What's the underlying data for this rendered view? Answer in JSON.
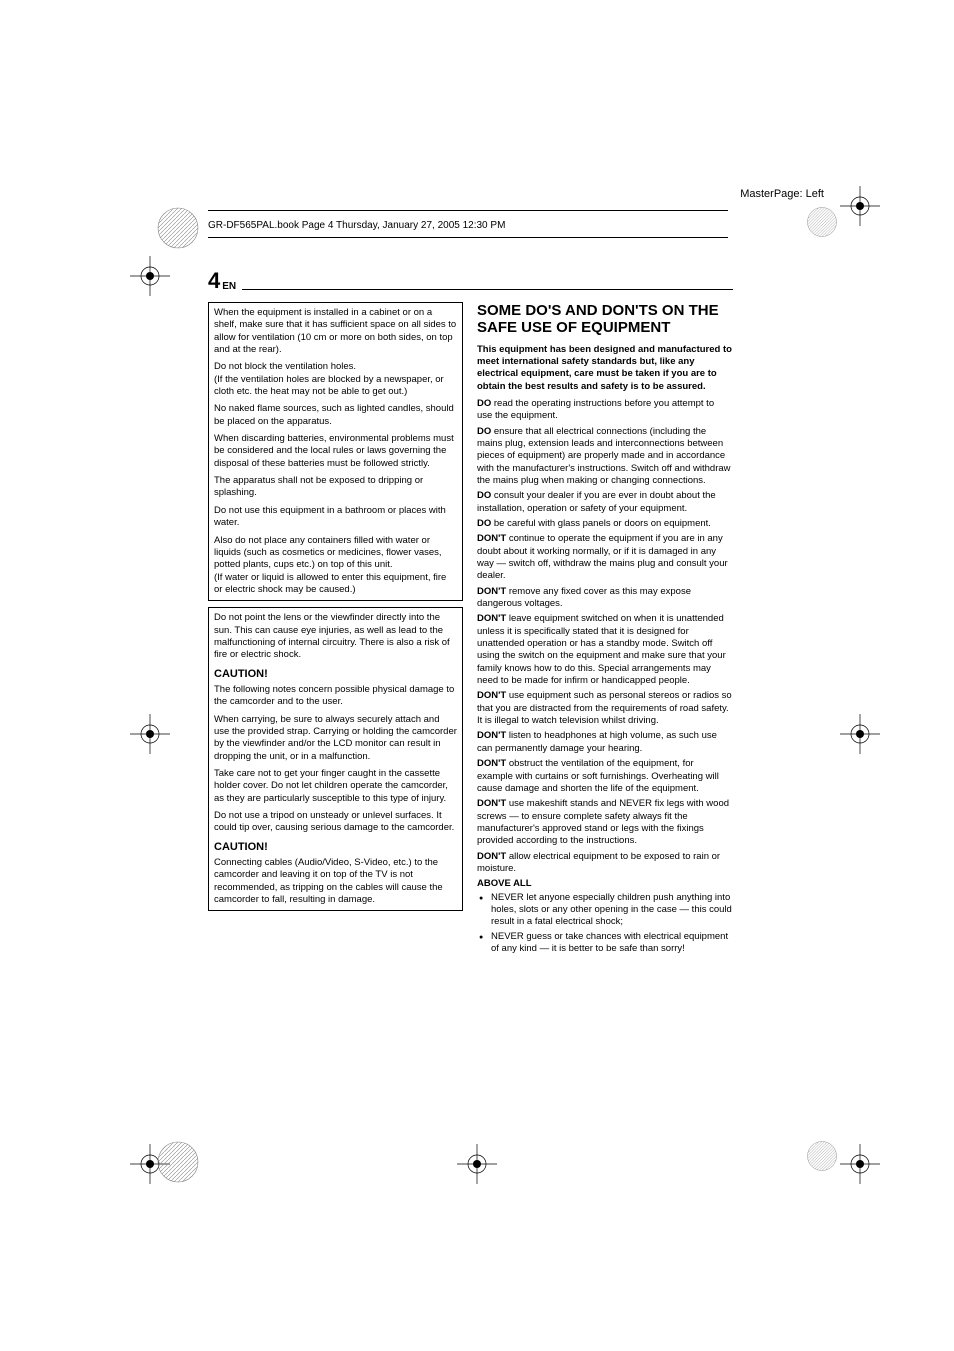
{
  "masterLabel": "MasterPage: Left",
  "bookHeader": "GR-DF565PAL.book  Page 4  Thursday, January 27, 2005  12:30 PM",
  "pageNumber": "4",
  "pageLang": "EN",
  "colors": {
    "text": "#000000",
    "background": "#ffffff",
    "rule": "#000000"
  },
  "fonts": {
    "body_size_pt": 9.5,
    "title_size_pt": 15,
    "caution_size_pt": 11,
    "family": "Arial, Helvetica, sans-serif"
  },
  "leftColumn": {
    "box1": [
      "When the equipment is installed in a cabinet or on a shelf, make sure that it has sufficient space on all sides to allow for ventilation (10 cm or more on both sides, on top and at the rear).",
      "Do not block the ventilation holes.",
      "(If the ventilation holes are blocked by a newspaper, or cloth etc. the heat may not be able to get out.)",
      "No naked flame sources, such as lighted candles, should be placed on the apparatus.",
      "When discarding batteries, environmental problems must be considered and the local rules or laws governing the disposal of these batteries must be followed strictly.",
      "The apparatus shall not be exposed to dripping or splashing.",
      "Do not use this equipment in a bathroom or places with water.",
      "Also do not place any containers filled with water or liquids (such as cosmetics or medicines, flower vases, potted plants, cups etc.) on top of this unit.",
      "(If water or liquid is allowed to enter this equipment, fire or electric shock may be caused.)"
    ],
    "box2Intro": "Do not point the lens or the viewfinder directly into the sun. This can cause eye injuries, as well as lead to the malfunctioning of internal circuitry. There is also a risk of fire or electric shock.",
    "caution1Heading": "CAUTION!",
    "caution1Paras": [
      "The following notes concern possible physical damage to the camcorder and to the user.",
      "When carrying, be sure to always securely attach and use the provided strap. Carrying or holding the camcorder by the viewfinder and/or the LCD monitor can result in dropping the unit, or in a malfunction.",
      "Take care not to get your finger caught in the cassette holder cover. Do not let children operate the camcorder, as they are particularly susceptible to this type of injury.",
      "Do not use a tripod on unsteady or unlevel surfaces. It could tip over, causing serious damage to the camcorder."
    ],
    "caution2Heading": "CAUTION!",
    "caution2Para": "Connecting cables (Audio/Video, S-Video, etc.) to the camcorder and leaving it on top of the TV is not recommended, as tripping on the cables will cause the camcorder to fall, resulting in damage."
  },
  "rightColumn": {
    "title": "SOME DO'S AND DON'TS ON THE SAFE USE OF EQUIPMENT",
    "intro": "This equipment has been designed and manufactured to meet international safety standards but, like any electrical equipment, care must be taken if you are to obtain the best results and safety is to be assured.",
    "dos": [
      {
        "prefix": "DO",
        "text": " read the operating instructions before you attempt to use the equipment."
      },
      {
        "prefix": "DO",
        "text": " ensure that all electrical connections (including the mains plug, extension leads and interconnections between pieces of equipment) are properly made and in accordance with the manufacturer's instructions. Switch off and withdraw the mains plug when making or changing connections."
      },
      {
        "prefix": "DO",
        "text": " consult your dealer if you are ever in doubt about the installation, operation or safety of your equipment."
      },
      {
        "prefix": "DO",
        "text": " be careful with glass panels or doors on equipment."
      }
    ],
    "donts": [
      {
        "prefix": "DON'T",
        "text": " continue to operate the equipment if you are in any doubt about it working normally, or if it is damaged in any way — switch off, withdraw the mains plug and consult your dealer."
      },
      {
        "prefix": "DON'T",
        "text": " remove any fixed cover as this may expose dangerous voltages."
      },
      {
        "prefix": "DON'T",
        "text": " leave equipment switched on when it is unattended unless it is specifically stated that it is designed for unattended operation or has a standby mode. Switch off using the switch on the equipment and make sure that your family knows how to do this. Special arrangements may need to be made for infirm or handicapped people."
      },
      {
        "prefix": "DON'T",
        "text": " use equipment such as personal stereos or radios so that you are distracted from the requirements of road safety. It is illegal to watch television whilst driving."
      },
      {
        "prefix": "DON'T",
        "text": " listen to headphones at high volume, as such use can permanently damage your hearing."
      },
      {
        "prefix": "DON'T",
        "text": " obstruct the ventilation of the equipment, for example with curtains or soft furnishings. Overheating will cause damage and shorten the life of the equipment."
      },
      {
        "prefix": "DON'T",
        "text": " use makeshift stands and NEVER fix legs with wood screws — to ensure complete safety always fit the manufacturer's approved stand or legs with the fixings provided according to the instructions."
      },
      {
        "prefix": "DON'T",
        "text": " allow electrical equipment to be exposed to rain or moisture."
      }
    ],
    "aboveAllHeading": "ABOVE ALL",
    "aboveAllBullets": [
      "NEVER let anyone especially children push anything into holes, slots or any other opening in the case — this could result in a fatal electrical shock;",
      "NEVER guess or take chances with electrical equipment of any kind — it is better to be safe than sorry!"
    ]
  }
}
